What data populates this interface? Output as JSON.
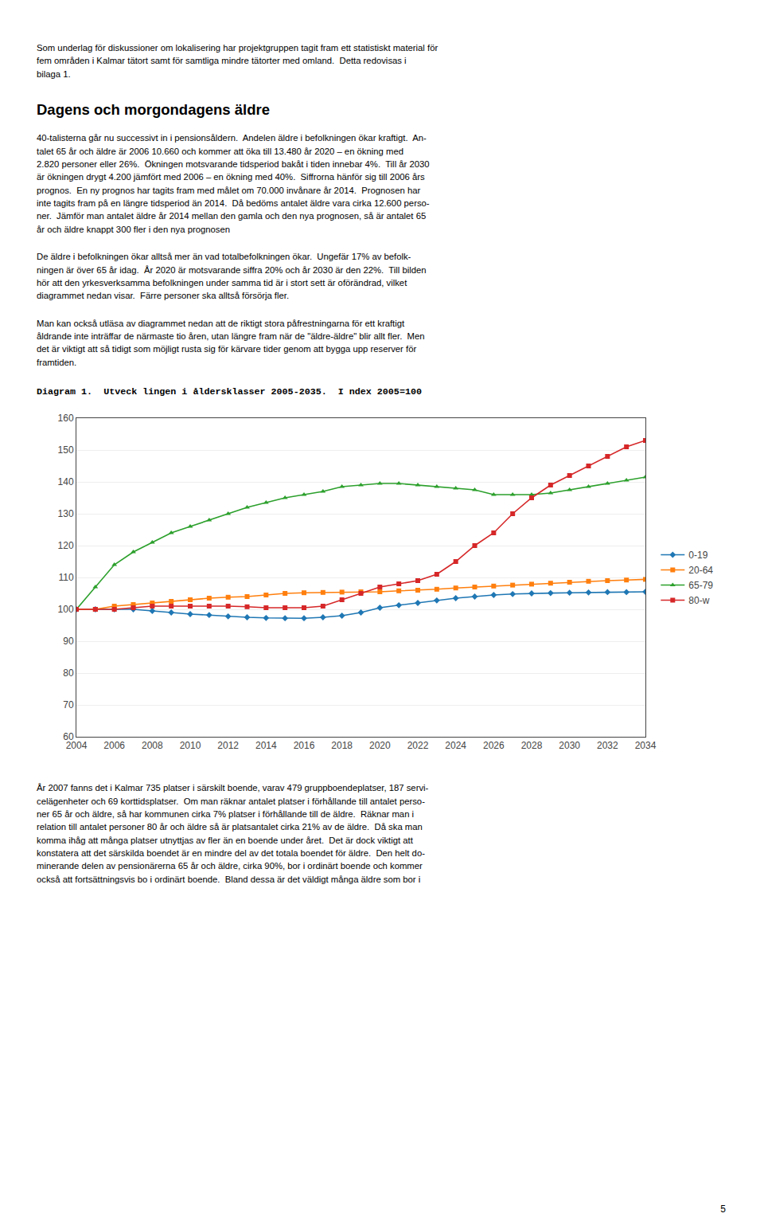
{
  "chart_data": {
    "type": "line",
    "title": "Diagram 1.  Utveck lingen i åldersklasser 2005-2035.  I ndex 2005=100",
    "annotations": [
      "Som underlag för diskussioner om lokalisering har projektgruppen tagit fram ett statistiskt material för\nfem områden i Kalmar tätort samt för samtliga mindre tätorter med omland.  Detta redovisas i\nbilaga 1.",
      "Dagens och morgondagens äldre",
      "40-talisterna går nu successivt in i pensionsåldern.  Andelen äldre i befolkningen ökar kraftigt.  An-\ntalet 65 år och äldre är 2006 10.660 och kommer att öka till 13.480 år 2020 – en ökning med\n2.820 personer eller 26%.  Ökningen motsvarande tidsperiod bakåt i tiden innebar 4%.  Till år 2030\när ökningen drygt 4.200 jämfört med 2006 – en ökning med 40%.  Siffrorna hänför sig till 2006 års\nprognos.  En ny prognos har tagits fram med målet om 70.000 invånare år 2014.  Prognosen har\ninte tagits fram på en längre tidsperiod än 2014.  Då bedöms antalet äldre vara cirka 12.600 perso-\nner.  Jämför man antalet äldre år 2014 mellan den gamla och den nya prognosen, så är antalet 65\når och äldre knappt 300 fler i den nya prognosen",
      "De äldre i befolkningen ökar alltså mer än vad totalbefolkningen ökar.  Ungefär 17% av befolk-\nningen är över 65 år idag.  År 2020 är motsvarande siffra 20% och år 2030 är den 22%.  Till bilden\nhör att den yrkesverksamma befolkningen under samma tid är i stort sett är oförändrad, vilket\ndiagrammet nedan visar.  Färre personer ska alltså försörja fler.",
      "Man kan också utläsa av diagrammet nedan att de riktigt stora påfrestningarna för ett kraftigt\nåldrande inte inträffar de närmaste tio åren, utan längre fram när de \"äldre-äldre\" blir allt fler.  Men\ndet är viktigt att så tidigt som möjligt rusta sig för kärvare tider genom att bygga upp reserver för\nframtiden.",
      "År 2007 fanns det i Kalmar 735 platser i särskilt boende, varav 479 gruppboendeplatser, 187 servi-\ncelägenheter och 69 korttidsplatser.  Om man räknar antalet platser i förhållande till antalet perso-\nner 65 år och äldre, så har kommunen cirka 7% platser i förhållande till de äldre.  Räknar man i\nrelation till antalet personer 80 år och äldre så är platsantalet cirka 21% av de äldre.  Då ska man\nkomma ihåg att många platser utnyttjas av fler än en boende under året.  Det är dock viktigt att\nkonstatera att det särskilda boendet är en mindre del av det totala boendet för äldre.  Den helt do-\nminerande delen av pensionärerna 65 år och äldre, cirka 90%, bor i ordinärt boende och kommer\nockså att fortsättningsvis bo i ordinärt boende.  Bland dessa är det väldigt många äldre som bor i",
      "5"
    ],
    "x": [
      2004,
      2005,
      2006,
      2007,
      2008,
      2009,
      2010,
      2011,
      2012,
      2013,
      2014,
      2015,
      2016,
      2017,
      2018,
      2019,
      2020,
      2021,
      2022,
      2023,
      2024,
      2025,
      2026,
      2027,
      2028,
      2029,
      2030,
      2031,
      2032,
      2033,
      2034
    ],
    "series": [
      {
        "name": "0-19",
        "marker": "diamond",
        "values": [
          100.0,
          100.0,
          100.0,
          100.0,
          99.5,
          99.0,
          98.5,
          98.2,
          97.8,
          97.5,
          97.3,
          97.2,
          97.2,
          97.5,
          98.0,
          99.0,
          100.5,
          101.3,
          102.0,
          102.8,
          103.5,
          104.0,
          104.5,
          104.8,
          105.0,
          105.1,
          105.2,
          105.3,
          105.4,
          105.4,
          105.5
        ]
      },
      {
        "name": "20-64",
        "marker": "square",
        "values": [
          100.0,
          100.0,
          101.0,
          101.5,
          102.0,
          102.5,
          103.0,
          103.5,
          103.8,
          104.0,
          104.5,
          105.0,
          105.2,
          105.3,
          105.4,
          105.5,
          105.5,
          105.8,
          106.0,
          106.3,
          106.7,
          107.0,
          107.3,
          107.6,
          107.9,
          108.2,
          108.5,
          108.8,
          109.0,
          109.2,
          109.4
        ]
      },
      {
        "name": "65-79",
        "marker": "triangle-up",
        "values": [
          100.0,
          107.0,
          114.0,
          118.0,
          121.0,
          124.0,
          126.0,
          128.0,
          130.0,
          132.0,
          133.5,
          135.0,
          136.0,
          137.0,
          138.5,
          139.0,
          139.5,
          139.5,
          139.0,
          138.5,
          138.0,
          137.5,
          136.0,
          136.0,
          136.0,
          136.5,
          137.5,
          138.5,
          139.5,
          140.5,
          141.5
        ]
      },
      {
        "name": "80-w",
        "marker": "square",
        "values": [
          100.0,
          100.0,
          100.0,
          100.5,
          101.0,
          101.0,
          101.0,
          101.0,
          101.0,
          100.8,
          100.5,
          100.5,
          100.5,
          101.0,
          103.0,
          105.0,
          107.0,
          108.0,
          109.0,
          111.0,
          115.0,
          120.0,
          124.0,
          130.0,
          135.0,
          139.0,
          142.0,
          145.0,
          148.0,
          151.0,
          153.0
        ]
      }
    ],
    "xlim": [
      2004,
      2034
    ],
    "xticks": [
      2004,
      2006,
      2008,
      2010,
      2012,
      2014,
      2016,
      2018,
      2020,
      2022,
      2024,
      2026,
      2028,
      2030,
      2032,
      2034
    ],
    "ylim": [
      60,
      160
    ],
    "yticks": [
      60,
      70,
      80,
      90,
      100,
      110,
      120,
      130,
      140,
      150,
      160
    ],
    "grid": "y",
    "legend": "right"
  }
}
